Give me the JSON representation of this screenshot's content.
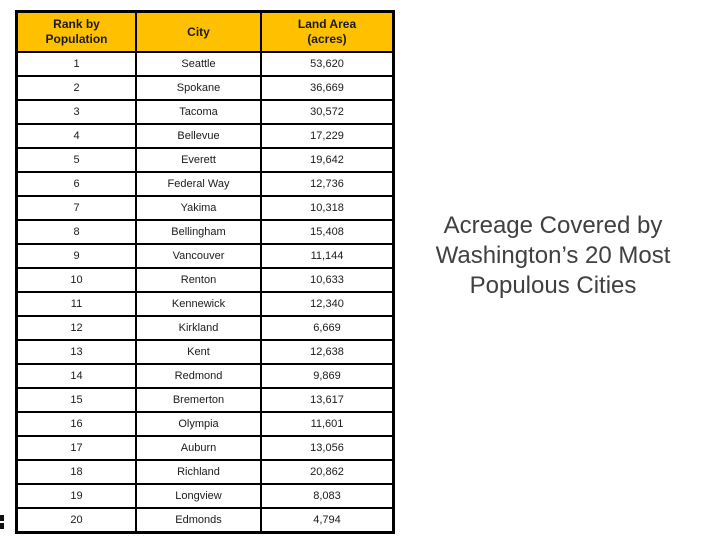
{
  "title": {
    "lines": [
      "Acreage Covered by",
      "Washington’s 20 Most",
      "Populous Cities"
    ]
  },
  "table": {
    "headers": {
      "rank": "Rank by\nPopulation",
      "city": "City",
      "area": "Land Area\n(acres)"
    },
    "rows": [
      {
        "rank": "1",
        "city": "Seattle",
        "area": "53,620"
      },
      {
        "rank": "2",
        "city": "Spokane",
        "area": "36,669"
      },
      {
        "rank": "3",
        "city": "Tacoma",
        "area": "30,572"
      },
      {
        "rank": "4",
        "city": "Bellevue",
        "area": "17,229"
      },
      {
        "rank": "5",
        "city": "Everett",
        "area": "19,642"
      },
      {
        "rank": "6",
        "city": "Federal Way",
        "area": "12,736"
      },
      {
        "rank": "7",
        "city": "Yakima",
        "area": "10,318"
      },
      {
        "rank": "8",
        "city": "Bellingham",
        "area": "15,408"
      },
      {
        "rank": "9",
        "city": "Vancouver",
        "area": "11,144"
      },
      {
        "rank": "10",
        "city": "Renton",
        "area": "10,633"
      },
      {
        "rank": "11",
        "city": "Kennewick",
        "area": "12,340"
      },
      {
        "rank": "12",
        "city": "Kirkland",
        "area": "6,669"
      },
      {
        "rank": "13",
        "city": "Kent",
        "area": "12,638"
      },
      {
        "rank": "14",
        "city": "Redmond",
        "area": "9,869"
      },
      {
        "rank": "15",
        "city": "Bremerton",
        "area": "13,617"
      },
      {
        "rank": "16",
        "city": "Olympia",
        "area": "11,601"
      },
      {
        "rank": "17",
        "city": "Auburn",
        "area": "13,056"
      },
      {
        "rank": "18",
        "city": "Richland",
        "area": "20,862"
      },
      {
        "rank": "19",
        "city": "Longview",
        "area": "8,083"
      },
      {
        "rank": "20",
        "city": "Edmonds",
        "area": "4,794"
      }
    ]
  },
  "chart_data": {
    "type": "table",
    "title": "Acreage Covered by Washington’s 20 Most Populous Cities",
    "columns": [
      "Rank by Population",
      "City",
      "Land Area (acres)"
    ],
    "cities": [
      "Seattle",
      "Spokane",
      "Tacoma",
      "Bellevue",
      "Everett",
      "Federal Way",
      "Yakima",
      "Bellingham",
      "Vancouver",
      "Renton",
      "Kennewick",
      "Kirkland",
      "Kent",
      "Redmond",
      "Bremerton",
      "Olympia",
      "Auburn",
      "Richland",
      "Longview",
      "Edmonds"
    ],
    "land_area_acres": [
      53620,
      36669,
      30572,
      17229,
      19642,
      12736,
      10318,
      15408,
      11144,
      10633,
      12340,
      6669,
      12638,
      9869,
      13617,
      11601,
      13056,
      20862,
      8083,
      4794
    ]
  },
  "colors": {
    "header_fill": "#ffc000",
    "border": "#000000",
    "body_text": "#1a1a1a",
    "title_text": "#404040",
    "background": "#ffffff"
  }
}
